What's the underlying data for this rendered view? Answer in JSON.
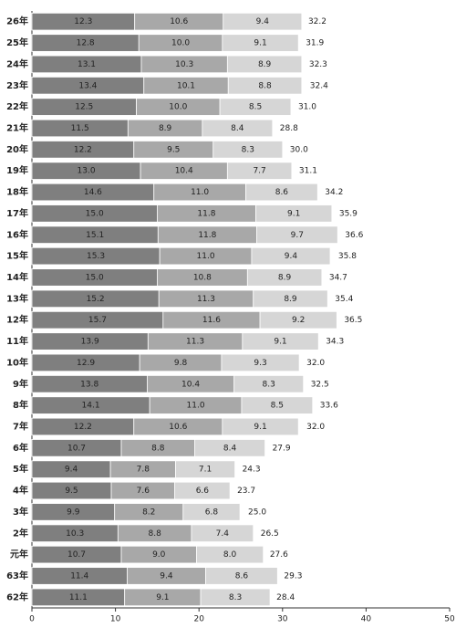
{
  "chart_data": {
    "type": "stacked-bar-horizontal",
    "categories": [
      "26年",
      "25年",
      "24年",
      "23年",
      "22年",
      "21年",
      "20年",
      "19年",
      "18年",
      "17年",
      "16年",
      "15年",
      "14年",
      "13年",
      "12年",
      "11年",
      "10年",
      "9年",
      "8年",
      "7年",
      "6年",
      "5年",
      "4年",
      "3年",
      "2年",
      "元年",
      "63年",
      "62年"
    ],
    "series": [
      {
        "color": "#7f7f7f",
        "values": [
          12.3,
          12.8,
          13.1,
          13.4,
          12.5,
          11.5,
          12.2,
          13.0,
          14.6,
          15.0,
          15.1,
          15.3,
          15.0,
          15.2,
          15.7,
          13.9,
          12.9,
          13.8,
          14.1,
          12.2,
          10.7,
          9.4,
          9.5,
          9.9,
          10.3,
          10.7,
          11.4,
          11.1
        ],
        "value_labels": [
          "12.3",
          "12.8",
          "13.1",
          "13.4",
          "12.5",
          "11.5",
          "12.2",
          "13.0",
          "14.6",
          "15.0",
          "15.1",
          "15.3",
          "15.0",
          "15.2",
          "15.7",
          "13.9",
          "12.9",
          "13.8",
          "14.1",
          "12.2",
          "10.7",
          "9.4",
          "9.5",
          "9.9",
          "10.3",
          "10.7",
          "11.4",
          "11.1"
        ]
      },
      {
        "color": "#a8a8a8",
        "values": [
          10.6,
          10.0,
          10.3,
          10.1,
          10.0,
          8.9,
          9.5,
          10.4,
          11.0,
          11.8,
          11.8,
          11.0,
          10.8,
          11.3,
          11.6,
          11.3,
          9.8,
          10.4,
          11.0,
          10.6,
          8.8,
          7.8,
          7.6,
          8.2,
          8.8,
          9.0,
          9.4,
          9.1
        ],
        "value_labels": [
          "10.6",
          "10.0",
          "10.3",
          "10.1",
          "10.0",
          "8.9",
          "9.5",
          "10.4",
          "11.0",
          "11.8",
          "11.8",
          "11.0",
          "10.8",
          "11.3",
          "11.6",
          "11.3",
          "9.8",
          "10.4",
          "11.0",
          "10.6",
          "8.8",
          "7.8",
          "7.6",
          "8.2",
          "8.8",
          "9.0",
          "9.4",
          "9.1"
        ]
      },
      {
        "color": "#d6d6d6",
        "values": [
          9.4,
          9.1,
          8.9,
          8.8,
          8.5,
          8.4,
          8.3,
          7.7,
          8.6,
          9.1,
          9.7,
          9.4,
          8.9,
          8.9,
          9.2,
          9.1,
          9.3,
          8.3,
          8.5,
          9.1,
          8.4,
          7.1,
          6.6,
          6.8,
          7.4,
          8.0,
          8.6,
          8.3
        ],
        "value_labels": [
          "9.4",
          "9.1",
          "8.9",
          "8.8",
          "8.5",
          "8.4",
          "8.3",
          "7.7",
          "8.6",
          "9.1",
          "9.7",
          "9.4",
          "8.9",
          "8.9",
          "9.2",
          "9.1",
          "9.3",
          "8.3",
          "8.5",
          "9.1",
          "8.4",
          "7.1",
          "6.6",
          "6.8",
          "7.4",
          "8.0",
          "8.6",
          "8.3"
        ]
      }
    ],
    "totals": [
      32.2,
      31.9,
      32.3,
      32.4,
      31.0,
      28.8,
      30.0,
      31.1,
      34.2,
      35.9,
      36.6,
      35.8,
      34.7,
      35.4,
      36.5,
      34.3,
      32.0,
      32.5,
      33.6,
      32.0,
      27.9,
      24.3,
      23.7,
      25.0,
      26.5,
      27.6,
      29.3,
      28.4
    ],
    "total_labels": [
      "32.2",
      "31.9",
      "32.3",
      "32.4",
      "31.0",
      "28.8",
      "30.0",
      "31.1",
      "34.2",
      "35.9",
      "36.6",
      "35.8",
      "34.7",
      "35.4",
      "36.5",
      "34.3",
      "32.0",
      "32.5",
      "33.6",
      "32.0",
      "27.9",
      "24.3",
      "23.7",
      "25.0",
      "26.5",
      "27.6",
      "29.3",
      "28.4"
    ],
    "xlim": [
      0,
      50
    ],
    "xticks": [
      0,
      10,
      20,
      30,
      40,
      50
    ]
  }
}
